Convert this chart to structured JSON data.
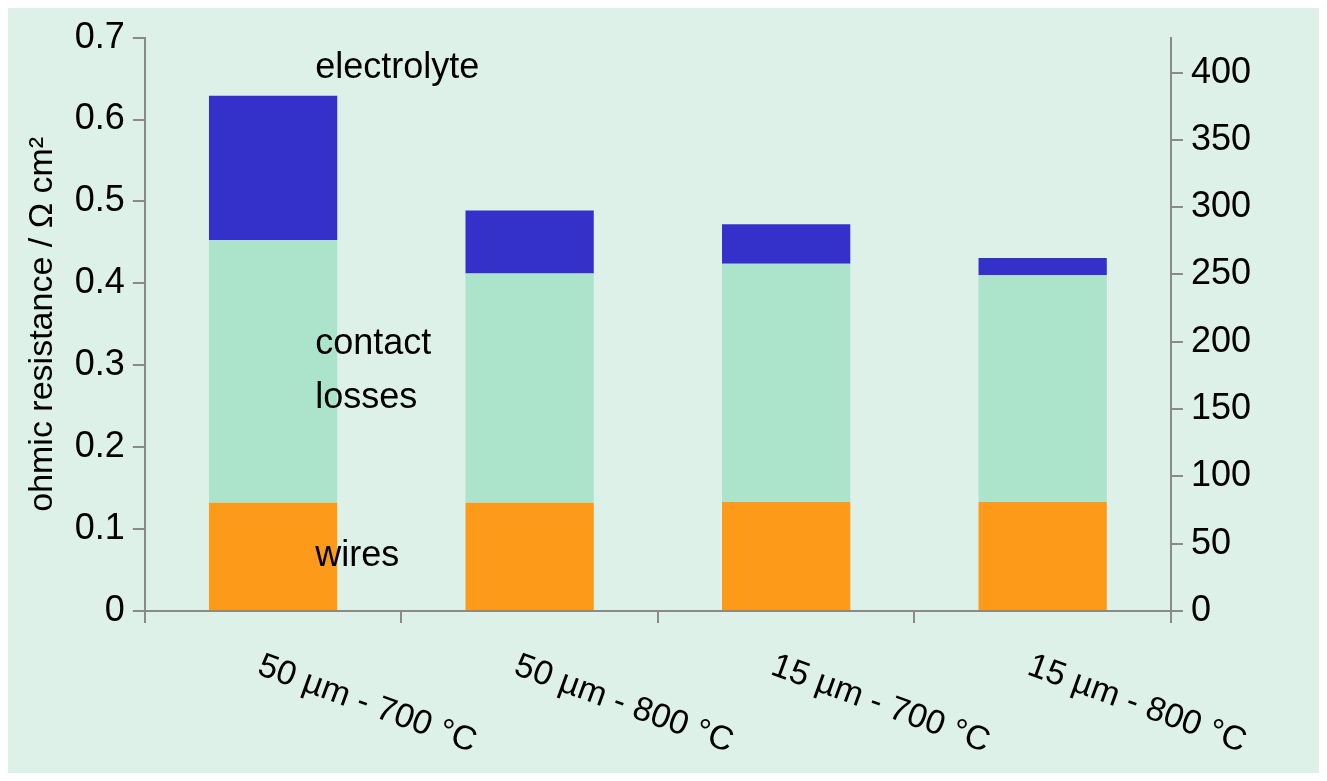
{
  "chart_data": {
    "type": "bar",
    "stacked": true,
    "ylabel": "ohmic resistance / Ω cm²",
    "categories": [
      "50 µm - 700 °C",
      "50 µm - 800 °C",
      "15 µm - 700 °C",
      "15 µm - 800 °C"
    ],
    "series": [
      {
        "name": "wires",
        "color": "#fd9a1a",
        "values": [
          0.132,
          0.132,
          0.133,
          0.133
        ]
      },
      {
        "name": "contact losses",
        "color": "#ace3cb",
        "values": [
          0.321,
          0.28,
          0.291,
          0.277
        ]
      },
      {
        "name": "electrolyte",
        "color": "#3431cb",
        "values": [
          0.176,
          0.077,
          0.048,
          0.021
        ]
      }
    ],
    "ylim": [
      0,
      0.7
    ],
    "yticks": [
      0,
      0.1,
      0.2,
      0.3,
      0.4,
      0.5,
      0.6,
      0.7
    ],
    "y2lim": [
      0,
      426
    ],
    "y2ticks": [
      0,
      50,
      100,
      150,
      200,
      250,
      300,
      350,
      400
    ],
    "grid": false,
    "legend": false
  }
}
